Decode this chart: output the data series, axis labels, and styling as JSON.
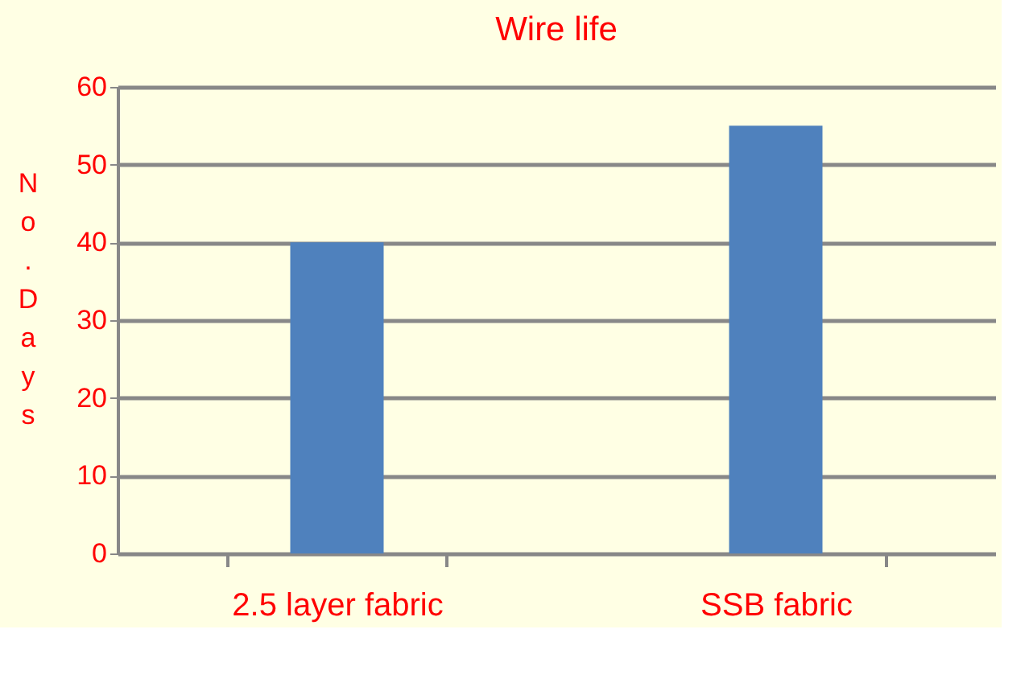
{
  "chart_data": {
    "type": "bar",
    "title": "Wire life",
    "ylabel": "No. Days",
    "categories": [
      "2.5 layer fabric",
      "SSB fabric"
    ],
    "values": [
      40,
      55
    ],
    "color": "#4f81bd",
    "ylim": [
      0,
      60
    ],
    "yticks": [
      0,
      10,
      20,
      30,
      40,
      50,
      60
    ],
    "grid": "y"
  }
}
